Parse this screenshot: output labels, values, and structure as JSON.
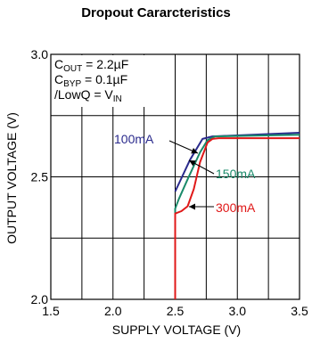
{
  "chart_data": {
    "type": "line",
    "title": "Dropout Cararcteristics",
    "xlabel": "SUPPLY VOLTAGE (V)",
    "ylabel": "OUTPUT VOLTAGE (V)",
    "xlim": [
      1.5,
      3.5
    ],
    "ylim": [
      2.0,
      3.0
    ],
    "x_ticks": [
      1.5,
      2.0,
      2.5,
      3.0,
      3.5
    ],
    "x_tick_labels": [
      "1.5",
      "2.0",
      "2.5",
      "3.0",
      "3.5"
    ],
    "y_ticks": [
      2.0,
      2.5,
      3.0
    ],
    "y_tick_labels": [
      "2.0",
      "2.5",
      "3.0"
    ],
    "grid": true,
    "conditions": [
      {
        "main": "C",
        "sub": "OUT",
        "rest": " = 2.2µF"
      },
      {
        "main": "C",
        "sub": "BYP",
        "rest": " = 0.1µF"
      },
      {
        "main": "/LowQ = V",
        "sub": "IN",
        "rest": ""
      }
    ],
    "series": [
      {
        "name": "100mA",
        "color": "#2a2a8c",
        "x": [
          2.5,
          2.62,
          2.72,
          2.8,
          3.5
        ],
        "y": [
          2.44,
          2.57,
          2.655,
          2.665,
          2.68
        ]
      },
      {
        "name": "150mA",
        "color": "#1a8a6a",
        "x": [
          2.5,
          2.5,
          2.53,
          2.6,
          2.7,
          2.76,
          2.82,
          3.5
        ],
        "y": [
          2.0,
          2.37,
          2.41,
          2.49,
          2.6,
          2.65,
          2.665,
          2.672
        ]
      },
      {
        "name": "300mA",
        "color": "#e01818",
        "x": [
          2.5,
          2.5,
          2.55,
          2.6,
          2.65,
          2.7,
          2.76,
          2.8,
          2.85,
          3.5
        ],
        "y": [
          2.0,
          2.35,
          2.36,
          2.38,
          2.45,
          2.56,
          2.64,
          2.655,
          2.658,
          2.658
        ]
      }
    ]
  }
}
